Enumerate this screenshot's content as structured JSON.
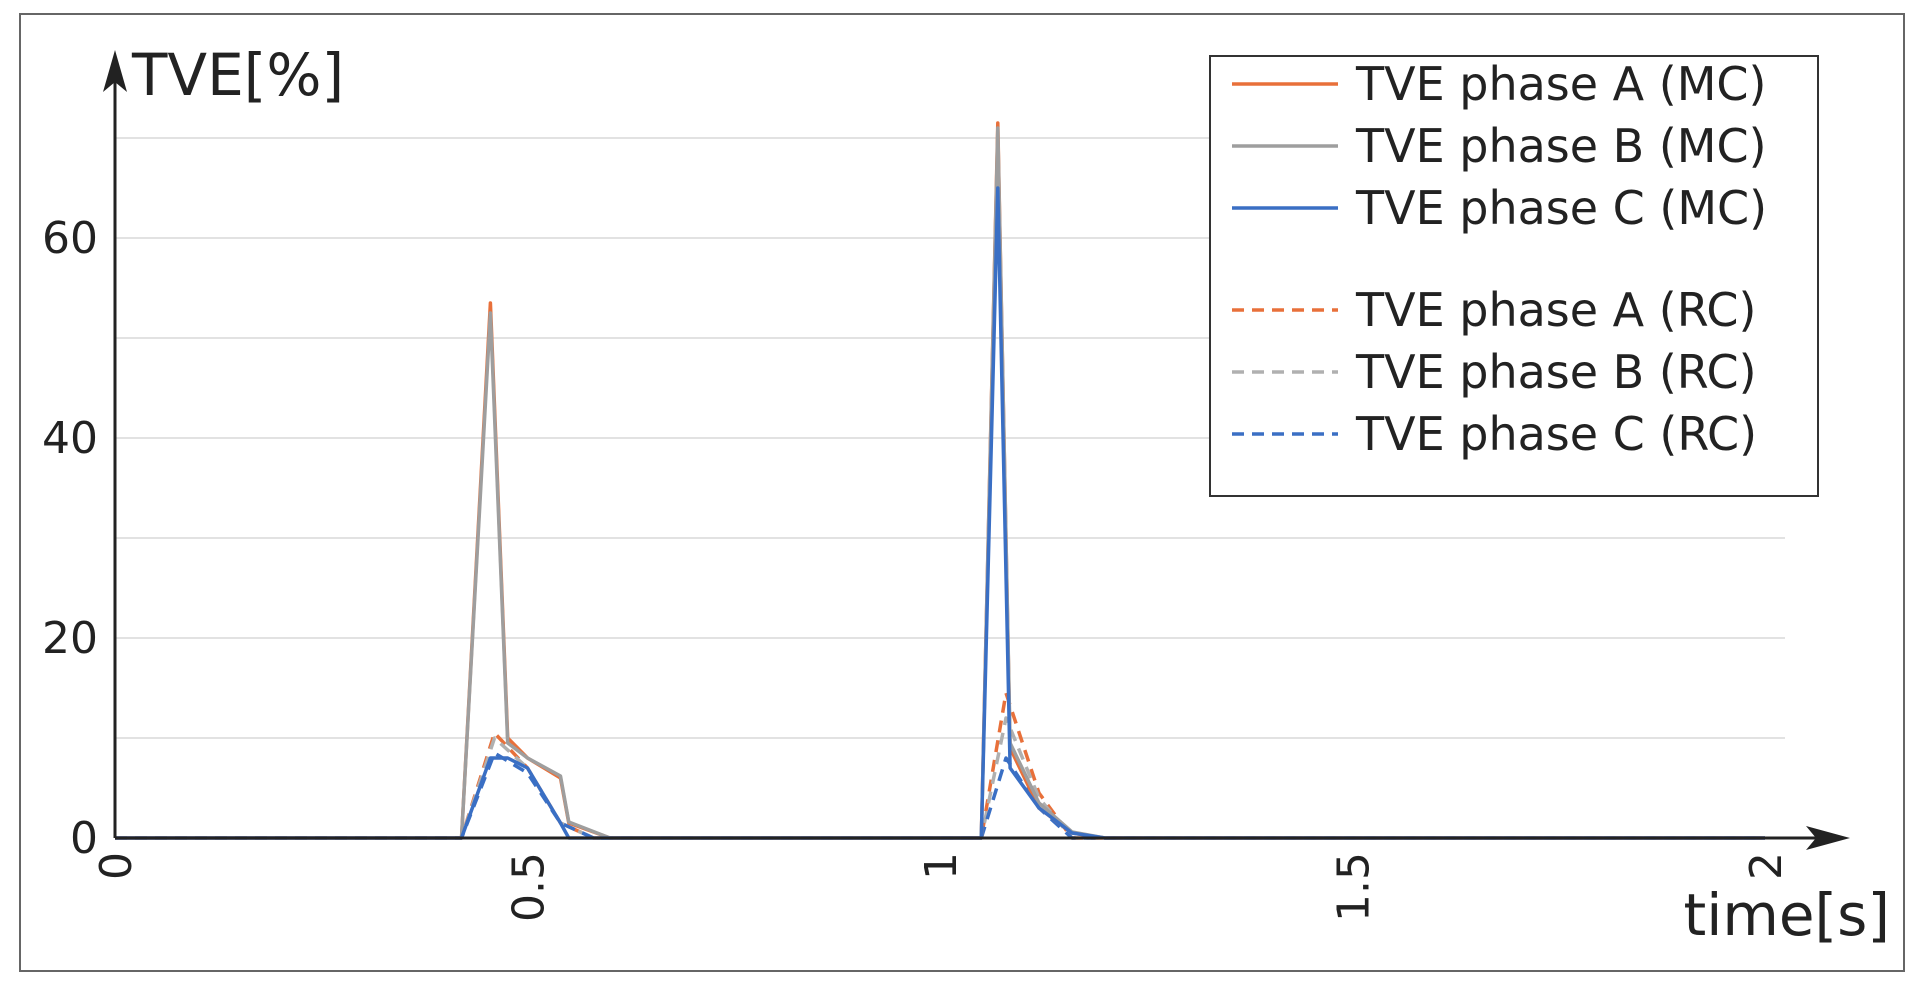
{
  "chart_data": {
    "type": "line",
    "xlabel": "time[s]",
    "ylabel": "TVE[%]",
    "xlim": [
      0,
      2
    ],
    "ylim": [
      0,
      70
    ],
    "x_ticks": [
      "0",
      "0.5",
      "1",
      "1.5",
      "2"
    ],
    "y_ticks": [
      "0",
      "20",
      "40",
      "60"
    ],
    "grid": "horizontal",
    "legend_position": "top-right",
    "series": [
      {
        "name": "TVE phase A (MC)",
        "color": "#e8703a",
        "style": "solid",
        "x": [
          0,
          0.42,
          0.455,
          0.476,
          0.5,
          0.54,
          0.55,
          0.6,
          0.63,
          1.05,
          1.07,
          1.085,
          1.12,
          1.16,
          1.2,
          1.24,
          2.0
        ],
        "y": [
          0,
          0,
          53.5,
          10,
          8,
          6,
          1.5,
          0,
          0,
          0,
          71.5,
          9,
          3,
          0.5,
          0,
          0,
          0
        ]
      },
      {
        "name": "TVE phase B (MC)",
        "color": "#9e9e9e",
        "style": "solid",
        "x": [
          0,
          0.42,
          0.455,
          0.476,
          0.5,
          0.54,
          0.55,
          0.6,
          0.63,
          1.05,
          1.07,
          1.085,
          1.12,
          1.16,
          1.2,
          1.24,
          2.0
        ],
        "y": [
          0,
          0,
          52.5,
          9.5,
          8,
          6.2,
          1.6,
          0,
          0,
          0,
          71,
          9.5,
          3.5,
          0.6,
          0,
          0,
          0
        ]
      },
      {
        "name": "TVE phase C (MC)",
        "color": "#3a6fc4",
        "style": "solid",
        "x": [
          0,
          0.42,
          0.455,
          0.476,
          0.5,
          0.54,
          0.55,
          0.6,
          0.63,
          1.05,
          1.07,
          1.085,
          1.12,
          1.16,
          1.2,
          1.24,
          2.0
        ],
        "y": [
          0,
          0,
          8,
          8,
          7,
          1.5,
          0,
          0,
          0,
          0,
          65,
          7,
          3,
          0.5,
          0,
          0,
          0
        ]
      },
      {
        "name": "TVE phase A (RC)",
        "color": "#e8703a",
        "style": "dashed",
        "x": [
          0,
          0.42,
          0.46,
          0.5,
          0.54,
          0.58,
          1.05,
          1.08,
          1.12,
          1.16,
          2.0
        ],
        "y": [
          0,
          0,
          10.5,
          7,
          1.5,
          0,
          0,
          14.5,
          4.5,
          0,
          0
        ]
      },
      {
        "name": "TVE phase B (RC)",
        "color": "#b0b0b0",
        "style": "dashed",
        "x": [
          0,
          0.42,
          0.46,
          0.5,
          0.54,
          0.58,
          1.05,
          1.08,
          1.12,
          1.16,
          2.0
        ],
        "y": [
          0,
          0,
          10,
          7,
          1.5,
          0,
          0,
          12,
          4,
          0,
          0
        ]
      },
      {
        "name": "TVE phase C (RC)",
        "color": "#3a6fc4",
        "style": "dashed",
        "x": [
          0,
          0.42,
          0.46,
          0.5,
          0.54,
          0.58,
          1.05,
          1.08,
          1.12,
          1.16,
          2.0
        ],
        "y": [
          0,
          0,
          8.5,
          6.5,
          1.5,
          0,
          0,
          8,
          3,
          0,
          0
        ]
      }
    ]
  }
}
